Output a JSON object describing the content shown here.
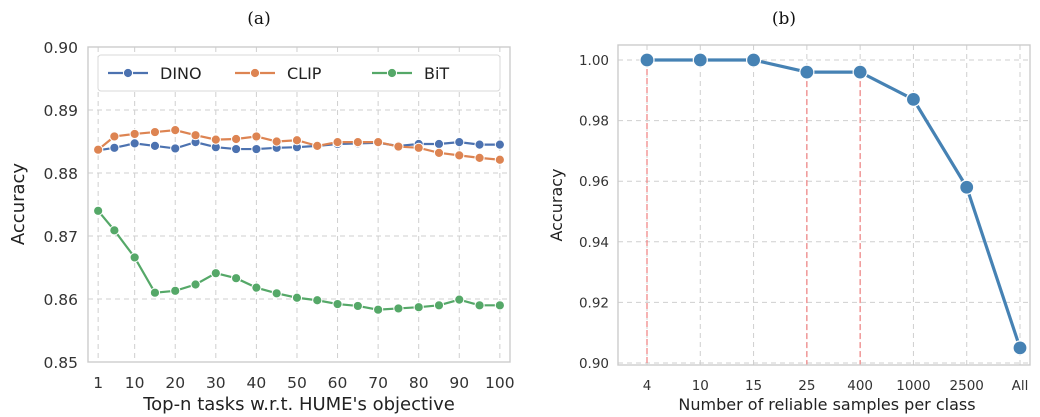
{
  "chart_data": [
    {
      "type": "line",
      "title": "(a)",
      "xlabel": "Top-n tasks w.r.t. HUME's objective",
      "ylabel": "Accuracy",
      "xlim": [
        -1.5,
        102.5
      ],
      "ylim": [
        0.85,
        0.9
      ],
      "xticks": [
        1,
        10,
        20,
        30,
        40,
        50,
        60,
        70,
        80,
        90,
        100
      ],
      "yticks": [
        "0.85",
        "0.86",
        "0.87",
        "0.88",
        "0.89",
        "0.90"
      ],
      "grid": true,
      "legend": "top",
      "x": [
        1,
        5,
        10,
        15,
        20,
        25,
        30,
        35,
        40,
        45,
        50,
        55,
        60,
        65,
        70,
        75,
        80,
        85,
        90,
        95,
        100
      ],
      "series": [
        {
          "name": "DINO",
          "color": "#4c72b0",
          "values": [
            0.8836,
            0.884,
            0.8847,
            0.8843,
            0.8839,
            0.8849,
            0.8841,
            0.8838,
            0.8838,
            0.884,
            0.8841,
            0.8843,
            0.8846,
            0.8847,
            0.8848,
            0.8843,
            0.8846,
            0.8846,
            0.8849,
            0.8845,
            0.8845
          ]
        },
        {
          "name": "CLIP",
          "color": "#dd8452",
          "values": [
            0.8837,
            0.8858,
            0.8862,
            0.8865,
            0.8868,
            0.886,
            0.8853,
            0.8854,
            0.8858,
            0.885,
            0.8852,
            0.8843,
            0.8849,
            0.8849,
            0.8849,
            0.8842,
            0.884,
            0.8832,
            0.8828,
            0.8824,
            0.8821
          ]
        },
        {
          "name": "BiT",
          "color": "#55a868",
          "values": [
            0.874,
            0.8709,
            0.8666,
            0.861,
            0.8613,
            0.8623,
            0.8641,
            0.8633,
            0.8618,
            0.8609,
            0.8602,
            0.8598,
            0.8592,
            0.8589,
            0.8583,
            0.8585,
            0.8587,
            0.859,
            0.8599,
            0.859,
            0.859
          ]
        }
      ]
    },
    {
      "type": "line",
      "title": "(b)",
      "xlabel": "Number of reliable samples per class",
      "ylabel": "Accuracy",
      "categories": [
        "4",
        "10",
        "15",
        "25",
        "400",
        "1000",
        "2500",
        "All"
      ],
      "ylim": [
        0.9,
        1.0
      ],
      "yticks": [
        "0.90",
        "0.92",
        "0.94",
        "0.96",
        "0.98",
        "1.00"
      ],
      "grid": true,
      "series": [
        {
          "color": "#4682b4",
          "values": [
            1.0,
            1.0,
            1.0,
            0.996,
            0.996,
            0.987,
            0.958,
            0.905
          ]
        }
      ],
      "highlighted_categories": [
        "4",
        "25",
        "400"
      ],
      "highlight_color": "#f08080"
    }
  ]
}
